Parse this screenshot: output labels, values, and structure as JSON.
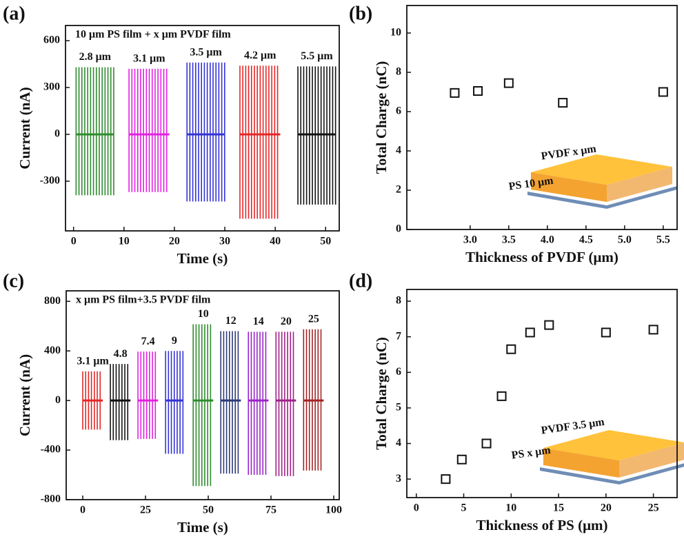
{
  "chart_data": [
    {
      "type": "pulse",
      "panel": "(a)",
      "title": "10 μm PS film + x μm PVDF film",
      "xlabel": "Time (s)",
      "ylabel": "Current (nA)",
      "xlim": [
        -1.6,
        52.7
      ],
      "xticks": [
        0,
        10,
        20,
        30,
        40,
        50
      ],
      "ylim": [
        -618,
        697
      ],
      "yticks": [
        -300,
        0,
        300,
        600
      ],
      "series": [
        {
          "name": "2.8 μm",
          "color": "#2e8b2e",
          "x": [
            0.5,
            8
          ],
          "values": [
            430,
            -390
          ]
        },
        {
          "name": "3.1 μm",
          "color": "#e020e0",
          "x": [
            11,
            19
          ],
          "values": [
            420,
            -370
          ]
        },
        {
          "name": "3.5 μm",
          "color": "#3333d6",
          "x": [
            22.5,
            30
          ],
          "values": [
            460,
            -430
          ]
        },
        {
          "name": "4.2 μm",
          "color": "#e52626",
          "x": [
            33,
            41
          ],
          "values": [
            440,
            -540
          ]
        },
        {
          "name": "5.5 μm",
          "color": "#111111",
          "x": [
            44.5,
            52
          ],
          "values": [
            435,
            -450
          ]
        }
      ]
    },
    {
      "type": "scatter",
      "panel": "(b)",
      "xlabel": "Thickness of PVDF (μm)",
      "ylabel": "Total Charge (nC)",
      "xlim": [
        2.18,
        5.68
      ],
      "xticks": [
        {
          "value": 3,
          "label": "3.0"
        },
        3.5,
        {
          "value": 4,
          "label": "4.0"
        },
        4.5,
        {
          "value": 5,
          "label": "5.0"
        },
        5.5
      ],
      "ylim": [
        0,
        11.4
      ],
      "yticks": [
        0,
        2,
        4,
        6,
        8,
        10
      ],
      "x": [
        2.8,
        3.1,
        3.5,
        4.2,
        5.5
      ],
      "values": [
        6.95,
        7.05,
        7.45,
        6.45,
        7.0
      ],
      "annotations": [
        "PVDF x μm",
        "PS 10 μm"
      ]
    },
    {
      "type": "pulse",
      "panel": "(c)",
      "title": "x μm PS film+3.5 PVDF film",
      "xlabel": "Time (s)",
      "ylabel": "Current (nA)",
      "xlim": [
        -6.6,
        102.2
      ],
      "xticks": [
        0,
        25,
        50,
        75,
        100
      ],
      "ylim": [
        -800,
        885
      ],
      "yticks": [
        -800,
        -400,
        0,
        400,
        800
      ],
      "series": [
        {
          "name": "3.1 μm",
          "color": "#e52626",
          "x": [
            0,
            8
          ],
          "values": [
            235,
            -235
          ]
        },
        {
          "name": "4.8",
          "color": "#111111",
          "x": [
            11,
            19
          ],
          "values": [
            295,
            -320
          ]
        },
        {
          "name": "7.4",
          "color": "#e020e0",
          "x": [
            22,
            30
          ],
          "values": [
            395,
            -310
          ]
        },
        {
          "name": "9",
          "color": "#3333d6",
          "x": [
            33,
            40
          ],
          "values": [
            400,
            -430
          ]
        },
        {
          "name": "10",
          "color": "#2e8b2e",
          "x": [
            44,
            52
          ],
          "values": [
            615,
            -690
          ]
        },
        {
          "name": "12",
          "color": "#2d3a7a",
          "x": [
            55,
            63
          ],
          "values": [
            560,
            -590
          ]
        },
        {
          "name": "14",
          "color": "#9a22c8",
          "x": [
            66,
            74
          ],
          "values": [
            555,
            -600
          ]
        },
        {
          "name": "20",
          "color": "#a0208a",
          "x": [
            77,
            85
          ],
          "values": [
            555,
            -610
          ]
        },
        {
          "name": "25",
          "color": "#a32424",
          "x": [
            88,
            96
          ],
          "values": [
            575,
            -565
          ]
        }
      ]
    },
    {
      "type": "scatter",
      "panel": "(d)",
      "xlabel": "Thickness of PS (μm)",
      "ylabel": "Total Charge (nC)",
      "xlim": [
        -1.0,
        27.5
      ],
      "xticks": [
        0,
        5,
        10,
        15,
        20,
        25
      ],
      "ylim": [
        2.48,
        8.33
      ],
      "yticks": [
        3,
        4,
        5,
        6,
        7,
        8
      ],
      "x": [
        3.1,
        4.8,
        7.4,
        9,
        10,
        12,
        14,
        20,
        25
      ],
      "values": [
        3.0,
        3.55,
        4.0,
        5.33,
        6.65,
        7.12,
        7.33,
        7.12,
        7.2
      ],
      "annotations": [
        "PVDF 3.5 μm",
        "PS x μm"
      ]
    }
  ]
}
